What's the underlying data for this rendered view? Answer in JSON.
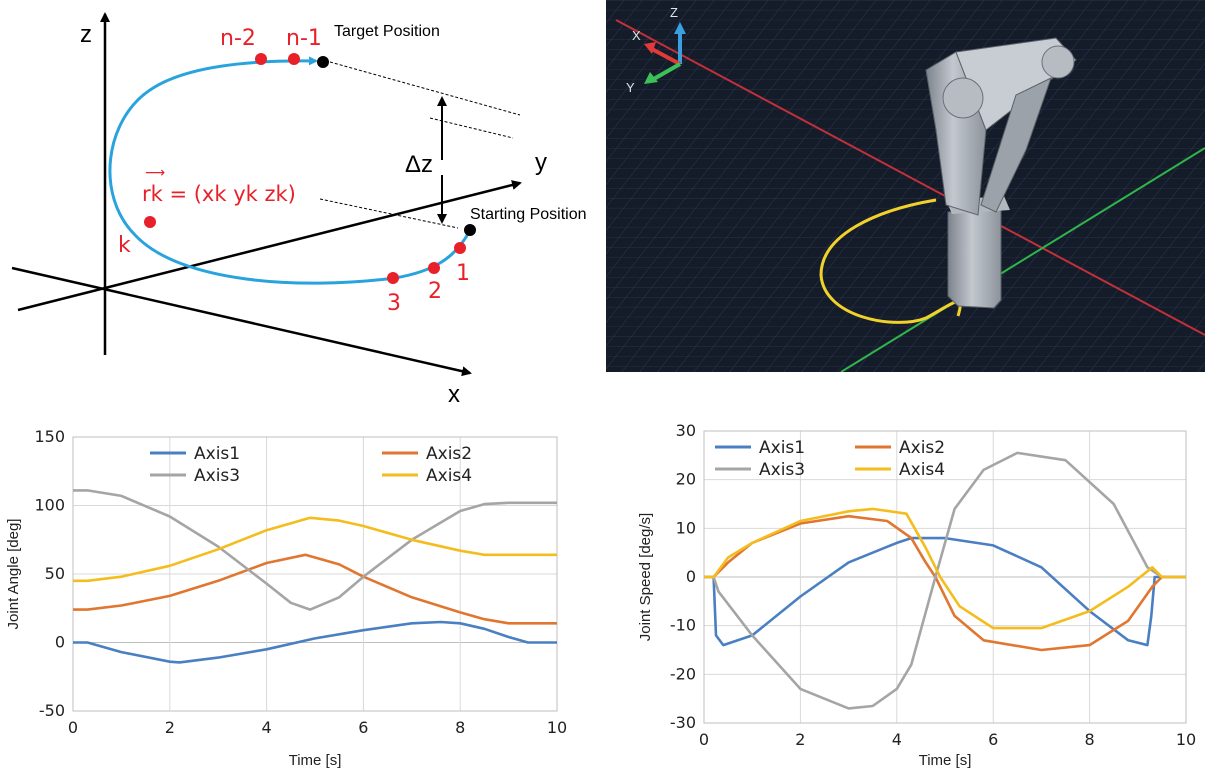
{
  "diagram": {
    "axis_z": "z",
    "axis_y": "y",
    "axis_x": "x",
    "target_label": "Target Position",
    "start_label": "Starting Position",
    "delta_label": "Δz",
    "vector_label": "rk = (xk yk zk)",
    "vector_arrow": "⟶",
    "points": [
      "n-2",
      "n-1",
      "k",
      "3",
      "2",
      "1"
    ],
    "colors": {
      "path": "#29a3dd",
      "point": "#e8202a",
      "end": "#000000"
    }
  },
  "render": {
    "axis_labels": [
      "Z",
      "X",
      "Y"
    ],
    "colors": {
      "background": "#141c2a",
      "grid": "#36405a",
      "x_axis": "#c2303a",
      "y_axis": "#2fb54a",
      "trajectory": "#f2d22a",
      "robot": "#aab0b8"
    }
  },
  "chart_data": [
    {
      "type": "line",
      "xlabel": "Time [s]",
      "ylabel": "Joint Angle [deg]",
      "xlim": [
        0,
        10
      ],
      "ylim": [
        -50,
        150
      ],
      "xticks": [
        0,
        2,
        4,
        6,
        8,
        10
      ],
      "yticks": [
        -50,
        0,
        50,
        100,
        150
      ],
      "legend": "top",
      "series": [
        {
          "name": "Axis1",
          "color": "#4a7fc1",
          "x": [
            0,
            0.3,
            1,
            2,
            2.2,
            3,
            4,
            5,
            6,
            7,
            7.6,
            8,
            8.5,
            9,
            9.4,
            10
          ],
          "y": [
            0,
            0,
            -7,
            -14,
            -14.5,
            -11,
            -5,
            3,
            9,
            14,
            15,
            14,
            10,
            4,
            0,
            0
          ]
        },
        {
          "name": "Axis2",
          "color": "#e0762f",
          "x": [
            0,
            0.3,
            1,
            2,
            3,
            4,
            4.8,
            5.5,
            6,
            7,
            8,
            8.5,
            9,
            9.3,
            10
          ],
          "y": [
            24,
            24,
            27,
            34,
            45,
            58,
            64,
            57,
            48,
            33,
            22,
            17,
            14,
            14,
            14
          ]
        },
        {
          "name": "Axis3",
          "color": "#a5a5a5",
          "x": [
            0,
            0.3,
            1,
            2,
            3,
            4,
            4.5,
            4.9,
            5.5,
            6,
            7,
            8,
            8.5,
            9,
            9.4,
            10
          ],
          "y": [
            111,
            111,
            107,
            92,
            70,
            43,
            29,
            24,
            33,
            48,
            75,
            96,
            101,
            102,
            102,
            102
          ]
        },
        {
          "name": "Axis4",
          "color": "#f4bd1d",
          "x": [
            0,
            0.3,
            1,
            2,
            3,
            4,
            4.9,
            5.5,
            6,
            7,
            8,
            8.5,
            9,
            9.4,
            10
          ],
          "y": [
            45,
            45,
            48,
            56,
            68,
            82,
            91,
            89,
            85,
            75,
            67,
            64,
            64,
            64,
            64
          ]
        }
      ]
    },
    {
      "type": "line",
      "xlabel": "Time [s]",
      "ylabel": "Joint Speed [deg/s]",
      "xlim": [
        0,
        10
      ],
      "ylim": [
        -30,
        30
      ],
      "xticks": [
        0,
        2,
        4,
        6,
        8,
        10
      ],
      "yticks": [
        -30,
        -20,
        -10,
        0,
        10,
        20,
        30
      ],
      "legend": "top",
      "series": [
        {
          "name": "Axis1",
          "color": "#4a7fc1",
          "x": [
            0,
            0.2,
            0.25,
            0.4,
            1,
            2,
            3,
            4,
            4.3,
            5,
            6,
            7,
            8,
            8.8,
            9.2,
            9.28,
            9.35,
            10
          ],
          "y": [
            0,
            0,
            -12,
            -14,
            -12,
            -4,
            3,
            7,
            8,
            8,
            6.5,
            2,
            -7,
            -13,
            -14,
            -8,
            0,
            0
          ]
        },
        {
          "name": "Axis2",
          "color": "#e0762f",
          "x": [
            0,
            0.2,
            0.5,
            1,
            2,
            3,
            3.8,
            4.3,
            4.6,
            4.8,
            5.2,
            5.8,
            7,
            8,
            8.8,
            9.3,
            9.5,
            10
          ],
          "y": [
            0,
            0,
            3,
            7,
            11,
            12.5,
            11.5,
            8,
            3,
            0,
            -8,
            -13,
            -15,
            -14,
            -9,
            -2,
            0,
            0
          ]
        },
        {
          "name": "Axis3",
          "color": "#a5a5a5",
          "x": [
            0,
            0.2,
            0.3,
            1,
            2,
            3,
            3.5,
            4,
            4.3,
            4.8,
            5.2,
            5.8,
            6.5,
            7.5,
            8.5,
            9.2,
            9.5,
            10
          ],
          "y": [
            0,
            0,
            -3,
            -12,
            -23,
            -27,
            -26.5,
            -23,
            -18,
            0,
            14,
            22,
            25.5,
            24,
            15,
            2,
            0,
            0
          ]
        },
        {
          "name": "Axis4",
          "color": "#f4bd1d",
          "x": [
            0,
            0.2,
            0.5,
            1,
            2,
            3,
            3.5,
            4.2,
            4.6,
            4.9,
            5.3,
            6,
            7,
            8,
            8.8,
            9.3,
            9.5,
            10
          ],
          "y": [
            0,
            0,
            4,
            7,
            11.5,
            13.5,
            14,
            13,
            6,
            0,
            -6,
            -10.5,
            -10.5,
            -7,
            -2,
            2,
            0,
            0
          ]
        }
      ]
    }
  ]
}
